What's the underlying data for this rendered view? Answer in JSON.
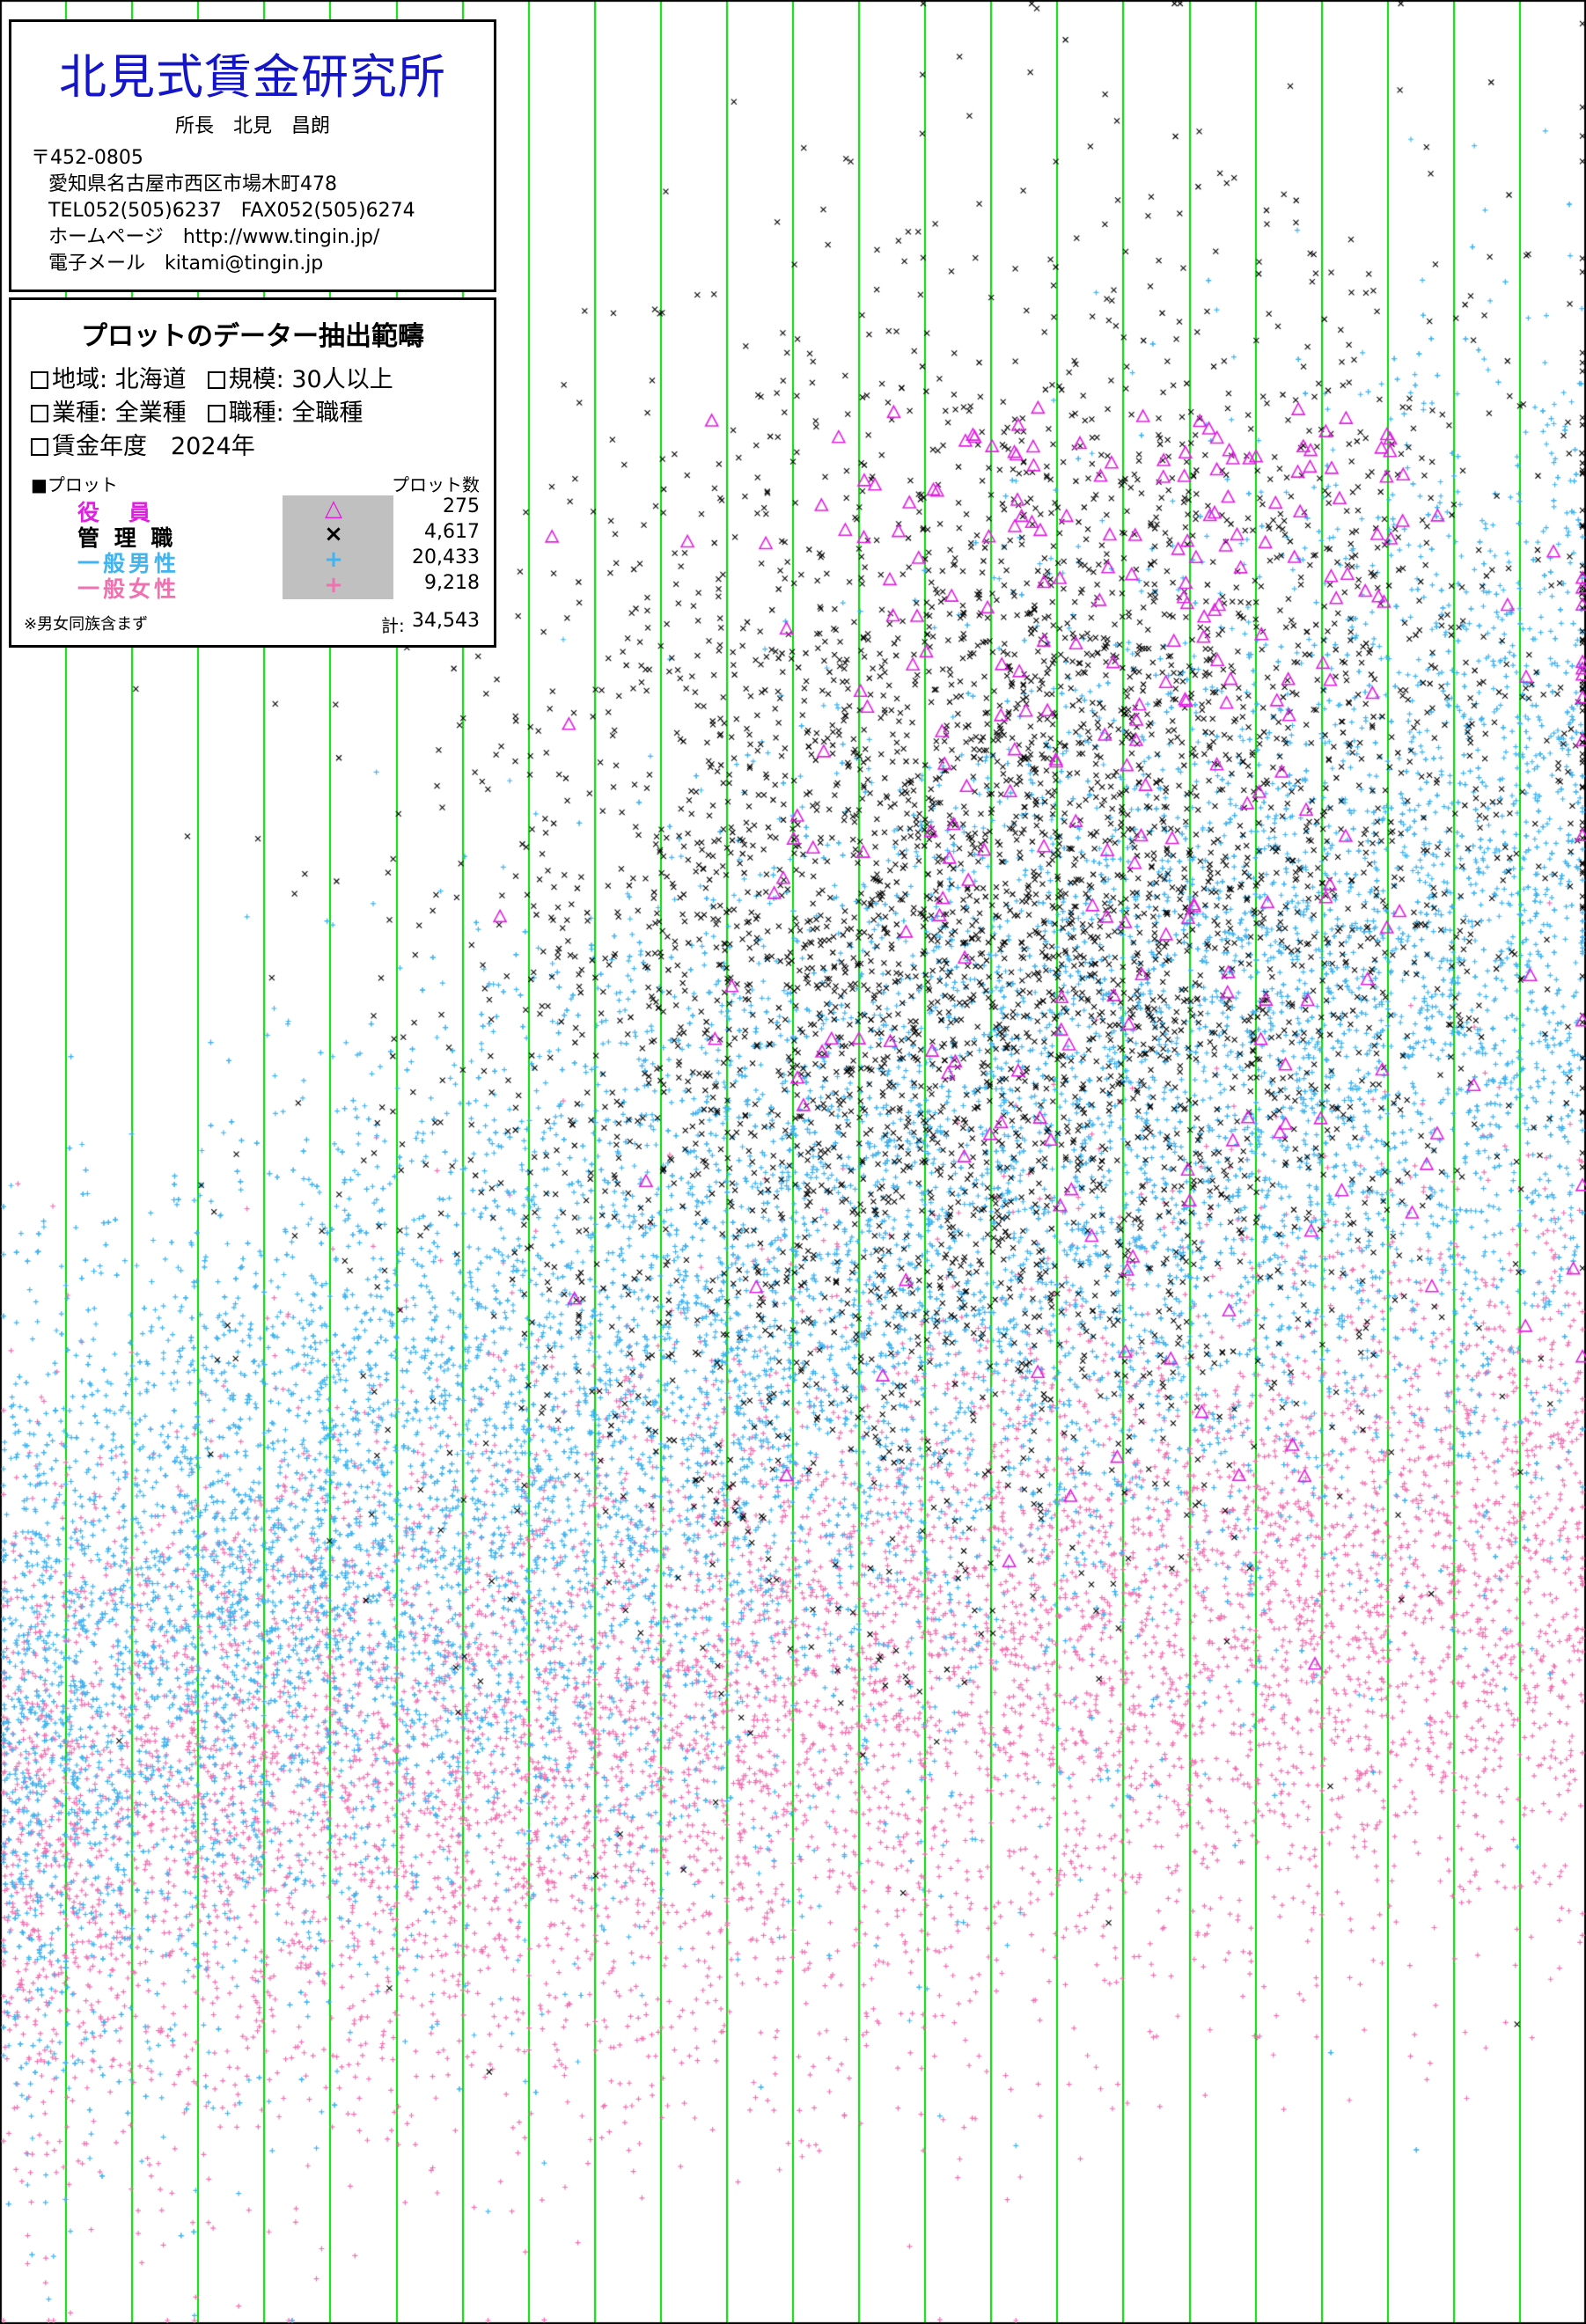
{
  "org": {
    "name": "北見式賃金研究所",
    "director": "所長　北見　昌朗",
    "postal": "〒452-0805",
    "address": "愛知県名古屋市西区市場木町478",
    "tel_fax": "TEL052(505)6237　FAX052(505)6274",
    "homepage": "ホームページ　http://www.tingin.jp/",
    "email": "電子メール　kitami@tingin.jp"
  },
  "filter": {
    "title": "プロットのデーター抽出範疇",
    "region_label": "地域: 北海道",
    "scale_label": "規模: 30人以上",
    "industry_label": "業種: 全業種",
    "occupation_label": "職種: 全職種",
    "year_label": "賃金年度　2024年"
  },
  "legend": {
    "header_left": "■プロット",
    "header_right": "プロット数",
    "items": [
      {
        "label": "役　員",
        "symbol": "△",
        "count": "275",
        "color": "#e020e0"
      },
      {
        "label": "管 理 職",
        "symbol": "×",
        "count": "4,617",
        "color": "#000000"
      },
      {
        "label": "一般男性",
        "symbol": "+",
        "count": "20,433",
        "color": "#40b4f0"
      },
      {
        "label": "一般女性",
        "symbol": "+",
        "count": "9,218",
        "color": "#f070b0"
      }
    ],
    "note": "※男女同族含まず",
    "total_label": "計:",
    "total": "34,543"
  },
  "chart_data": {
    "type": "scatter",
    "title": "",
    "xlabel": "",
    "ylabel": "",
    "grid": {
      "vertical_lines": 23,
      "color": "#00dd00"
    },
    "series": [
      {
        "name": "役員",
        "marker": "triangle",
        "color": "#e020e0",
        "count": 275
      },
      {
        "name": "管理職",
        "marker": "x",
        "color": "#000000",
        "count": 4617
      },
      {
        "name": "一般男性",
        "marker": "plus",
        "color": "#40b4f0",
        "count": 20433
      },
      {
        "name": "一般女性",
        "marker": "plus",
        "color": "#f070b0",
        "count": 9218
      }
    ],
    "legend_position": "top-left"
  }
}
